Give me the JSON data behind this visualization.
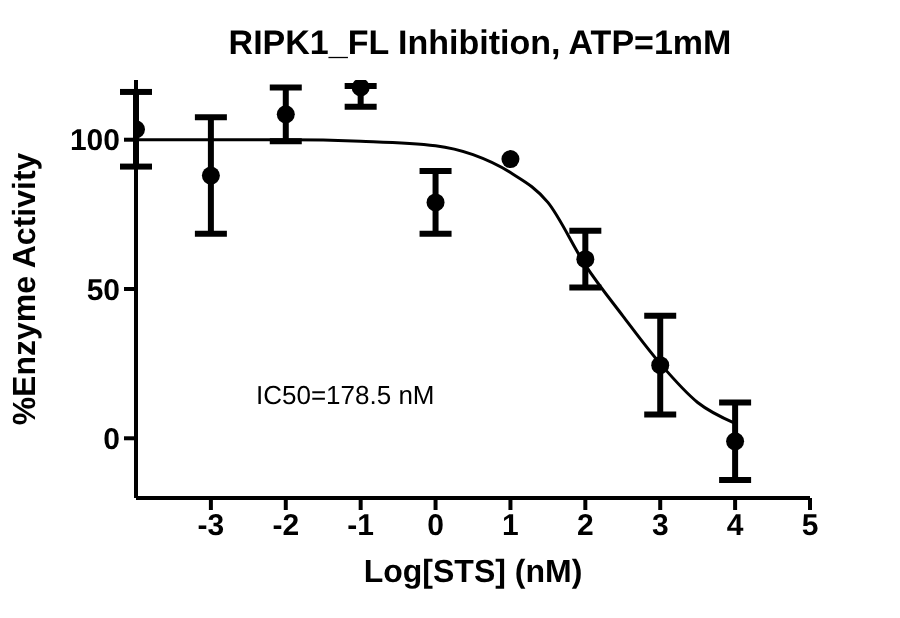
{
  "chart_data": {
    "type": "scatter",
    "title": "RIPK1_FL Inhibition, ATP=1mM",
    "xlabel": "Log[STS] (nM)",
    "ylabel": "%Enzyme Activity",
    "annotations": [
      "IC50=178.5 nM"
    ],
    "xlim": [
      -4,
      5
    ],
    "xticks": [
      -3,
      -2,
      -1,
      0,
      1,
      2,
      3,
      4,
      5
    ],
    "ylim": [
      -20,
      120
    ],
    "yticks": [
      0,
      50,
      100
    ],
    "grid": false,
    "legend": false,
    "series": [
      {
        "color": "#000000",
        "marker": "circle",
        "x": [
          -4,
          -3,
          -2,
          -1,
          0,
          1,
          2,
          3,
          4
        ],
        "values": [
          103.5,
          88,
          108.5,
          117.5,
          79,
          93.5,
          60,
          24.5,
          -1
        ],
        "errors": [
          12.5,
          19.5,
          9,
          [
            111,
            118
          ],
          10.5,
          null,
          9.5,
          16.5,
          13
        ]
      },
      {
        "type": "line",
        "color": "#000000",
        "marker": "none",
        "x": [
          -4,
          -3,
          -2,
          -1,
          0,
          0.5,
          1,
          1.5,
          2,
          2.5,
          3,
          3.5,
          4
        ],
        "values": [
          100,
          100,
          100,
          99.5,
          98,
          95,
          89,
          79,
          58,
          41,
          25,
          12,
          5
        ]
      }
    ]
  }
}
